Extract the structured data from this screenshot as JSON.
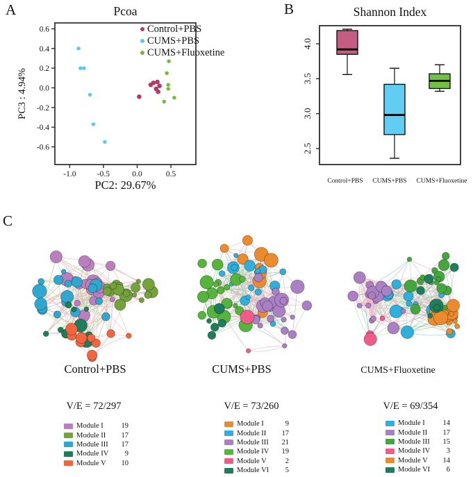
{
  "panels": {
    "a_label": "A",
    "b_label": "B",
    "c_label": "C"
  },
  "chart_data": [
    {
      "id": "pcoa",
      "type": "scatter",
      "title": "Pcoa",
      "xlabel": "PC2: 29.67%",
      "ylabel": "PC3 :  4.94%",
      "xlim": [
        -1.22,
        0.87
      ],
      "ylim": [
        -0.78,
        0.66
      ],
      "xticks": [
        "-1.0",
        "-0.5",
        "0.0",
        "0.5"
      ],
      "yticks": [
        "0.6",
        "0.4",
        "0.2",
        "0.0",
        "-0.2",
        "-0.4",
        "-0.6"
      ],
      "grid": false,
      "legend_position": "top-right-inside",
      "series": [
        {
          "name": "Control+PBS",
          "color": "#b43a66",
          "marker_size": 3.3,
          "points": [
            [
              0.2,
              0.03
            ],
            [
              0.24,
              0.05
            ],
            [
              0.3,
              0.06
            ],
            [
              0.33,
              0.02
            ],
            [
              0.28,
              -0.01
            ],
            [
              0.31,
              -0.04
            ],
            [
              0.03,
              -0.09
            ]
          ]
        },
        {
          "name": "CUMS+PBS",
          "color": "#5fc6e8",
          "marker_size": 2.7,
          "points": [
            [
              -0.87,
              0.4
            ],
            [
              -0.84,
              0.2
            ],
            [
              -0.79,
              0.2
            ],
            [
              -0.7,
              -0.07
            ],
            [
              -0.65,
              -0.37
            ],
            [
              -0.48,
              -0.55
            ]
          ]
        },
        {
          "name": "CUMS+Fluoxetine",
          "color": "#76b83f",
          "marker_size": 2.7,
          "points": [
            [
              0.47,
              0.27
            ],
            [
              0.44,
              0.15
            ],
            [
              0.46,
              0.03
            ],
            [
              0.46,
              -0.01
            ],
            [
              0.55,
              -0.1
            ],
            [
              0.4,
              -0.14
            ]
          ]
        }
      ]
    },
    {
      "id": "shannon",
      "type": "boxplot",
      "title": "Shannon Index",
      "ylim": [
        2.27,
        4.26
      ],
      "yticks": [
        "4.0",
        "3.5",
        "3.0",
        "2.5"
      ],
      "boxes": [
        {
          "label": "Control+PBS",
          "color": "#c55c82",
          "min": 3.56,
          "q1": 3.85,
          "median": 3.92,
          "q3": 4.19,
          "max": 4.21
        },
        {
          "label": "CUMS+PBS",
          "color": "#62cdf2",
          "min": 2.36,
          "q1": 2.7,
          "median": 2.98,
          "q3": 3.42,
          "max": 3.65
        },
        {
          "label": "CUMS+Fluoxetine",
          "color": "#72c146",
          "min": 3.32,
          "q1": 3.36,
          "median": 3.47,
          "q3": 3.57,
          "max": 3.7
        }
      ]
    },
    {
      "id": "networks",
      "type": "network",
      "edge_colors": {
        "pink": "#f2b4c6",
        "green": "#b6d9a4",
        "teal": "#93ccbd"
      },
      "panels": [
        {
          "title": "Control+PBS",
          "ve_label": "V/E = 72/297",
          "vertices": 72,
          "edges": 297,
          "modules": [
            {
              "name": "Module I",
              "count": 19,
              "color": "#bb7fc0"
            },
            {
              "name": "Module II",
              "count": 17,
              "color": "#73a33b"
            },
            {
              "name": "Module III",
              "count": 17,
              "color": "#2fa7cf"
            },
            {
              "name": "Module IV",
              "count": 9,
              "color": "#1e7d5a"
            },
            {
              "name": "Module V",
              "count": 10,
              "color": "#f2653f"
            }
          ]
        },
        {
          "title": "CUMS+PBS",
          "ve_label": "V/E = 73/260",
          "vertices": 73,
          "edges": 260,
          "modules": [
            {
              "name": "Module I",
              "count": 9,
              "color": "#ec8b2e"
            },
            {
              "name": "Module II",
              "count": 17,
              "color": "#2fb0dc"
            },
            {
              "name": "Module III",
              "count": 21,
              "color": "#ab7fc3"
            },
            {
              "name": "Module IV",
              "count": 19,
              "color": "#55b43c"
            },
            {
              "name": "Module V",
              "count": 2,
              "color": "#f05c8a"
            },
            {
              "name": "Module VI",
              "count": 5,
              "color": "#1e7d5a"
            }
          ]
        },
        {
          "title": "CUMS+Fluoxetine",
          "ve_label": "V/E = 69/354",
          "vertices": 69,
          "edges": 354,
          "modules": [
            {
              "name": "Module I",
              "count": 14,
              "color": "#2fb0dc"
            },
            {
              "name": "Module II",
              "count": 17,
              "color": "#ab7fc3"
            },
            {
              "name": "Module III",
              "count": 15,
              "color": "#44a73e"
            },
            {
              "name": "Module IV",
              "count": 3,
              "color": "#f05c8a"
            },
            {
              "name": "Module V",
              "count": 14,
              "color": "#ec8b2e"
            },
            {
              "name": "Module VI",
              "count": 6,
              "color": "#1e7d5a"
            }
          ]
        }
      ]
    }
  ]
}
